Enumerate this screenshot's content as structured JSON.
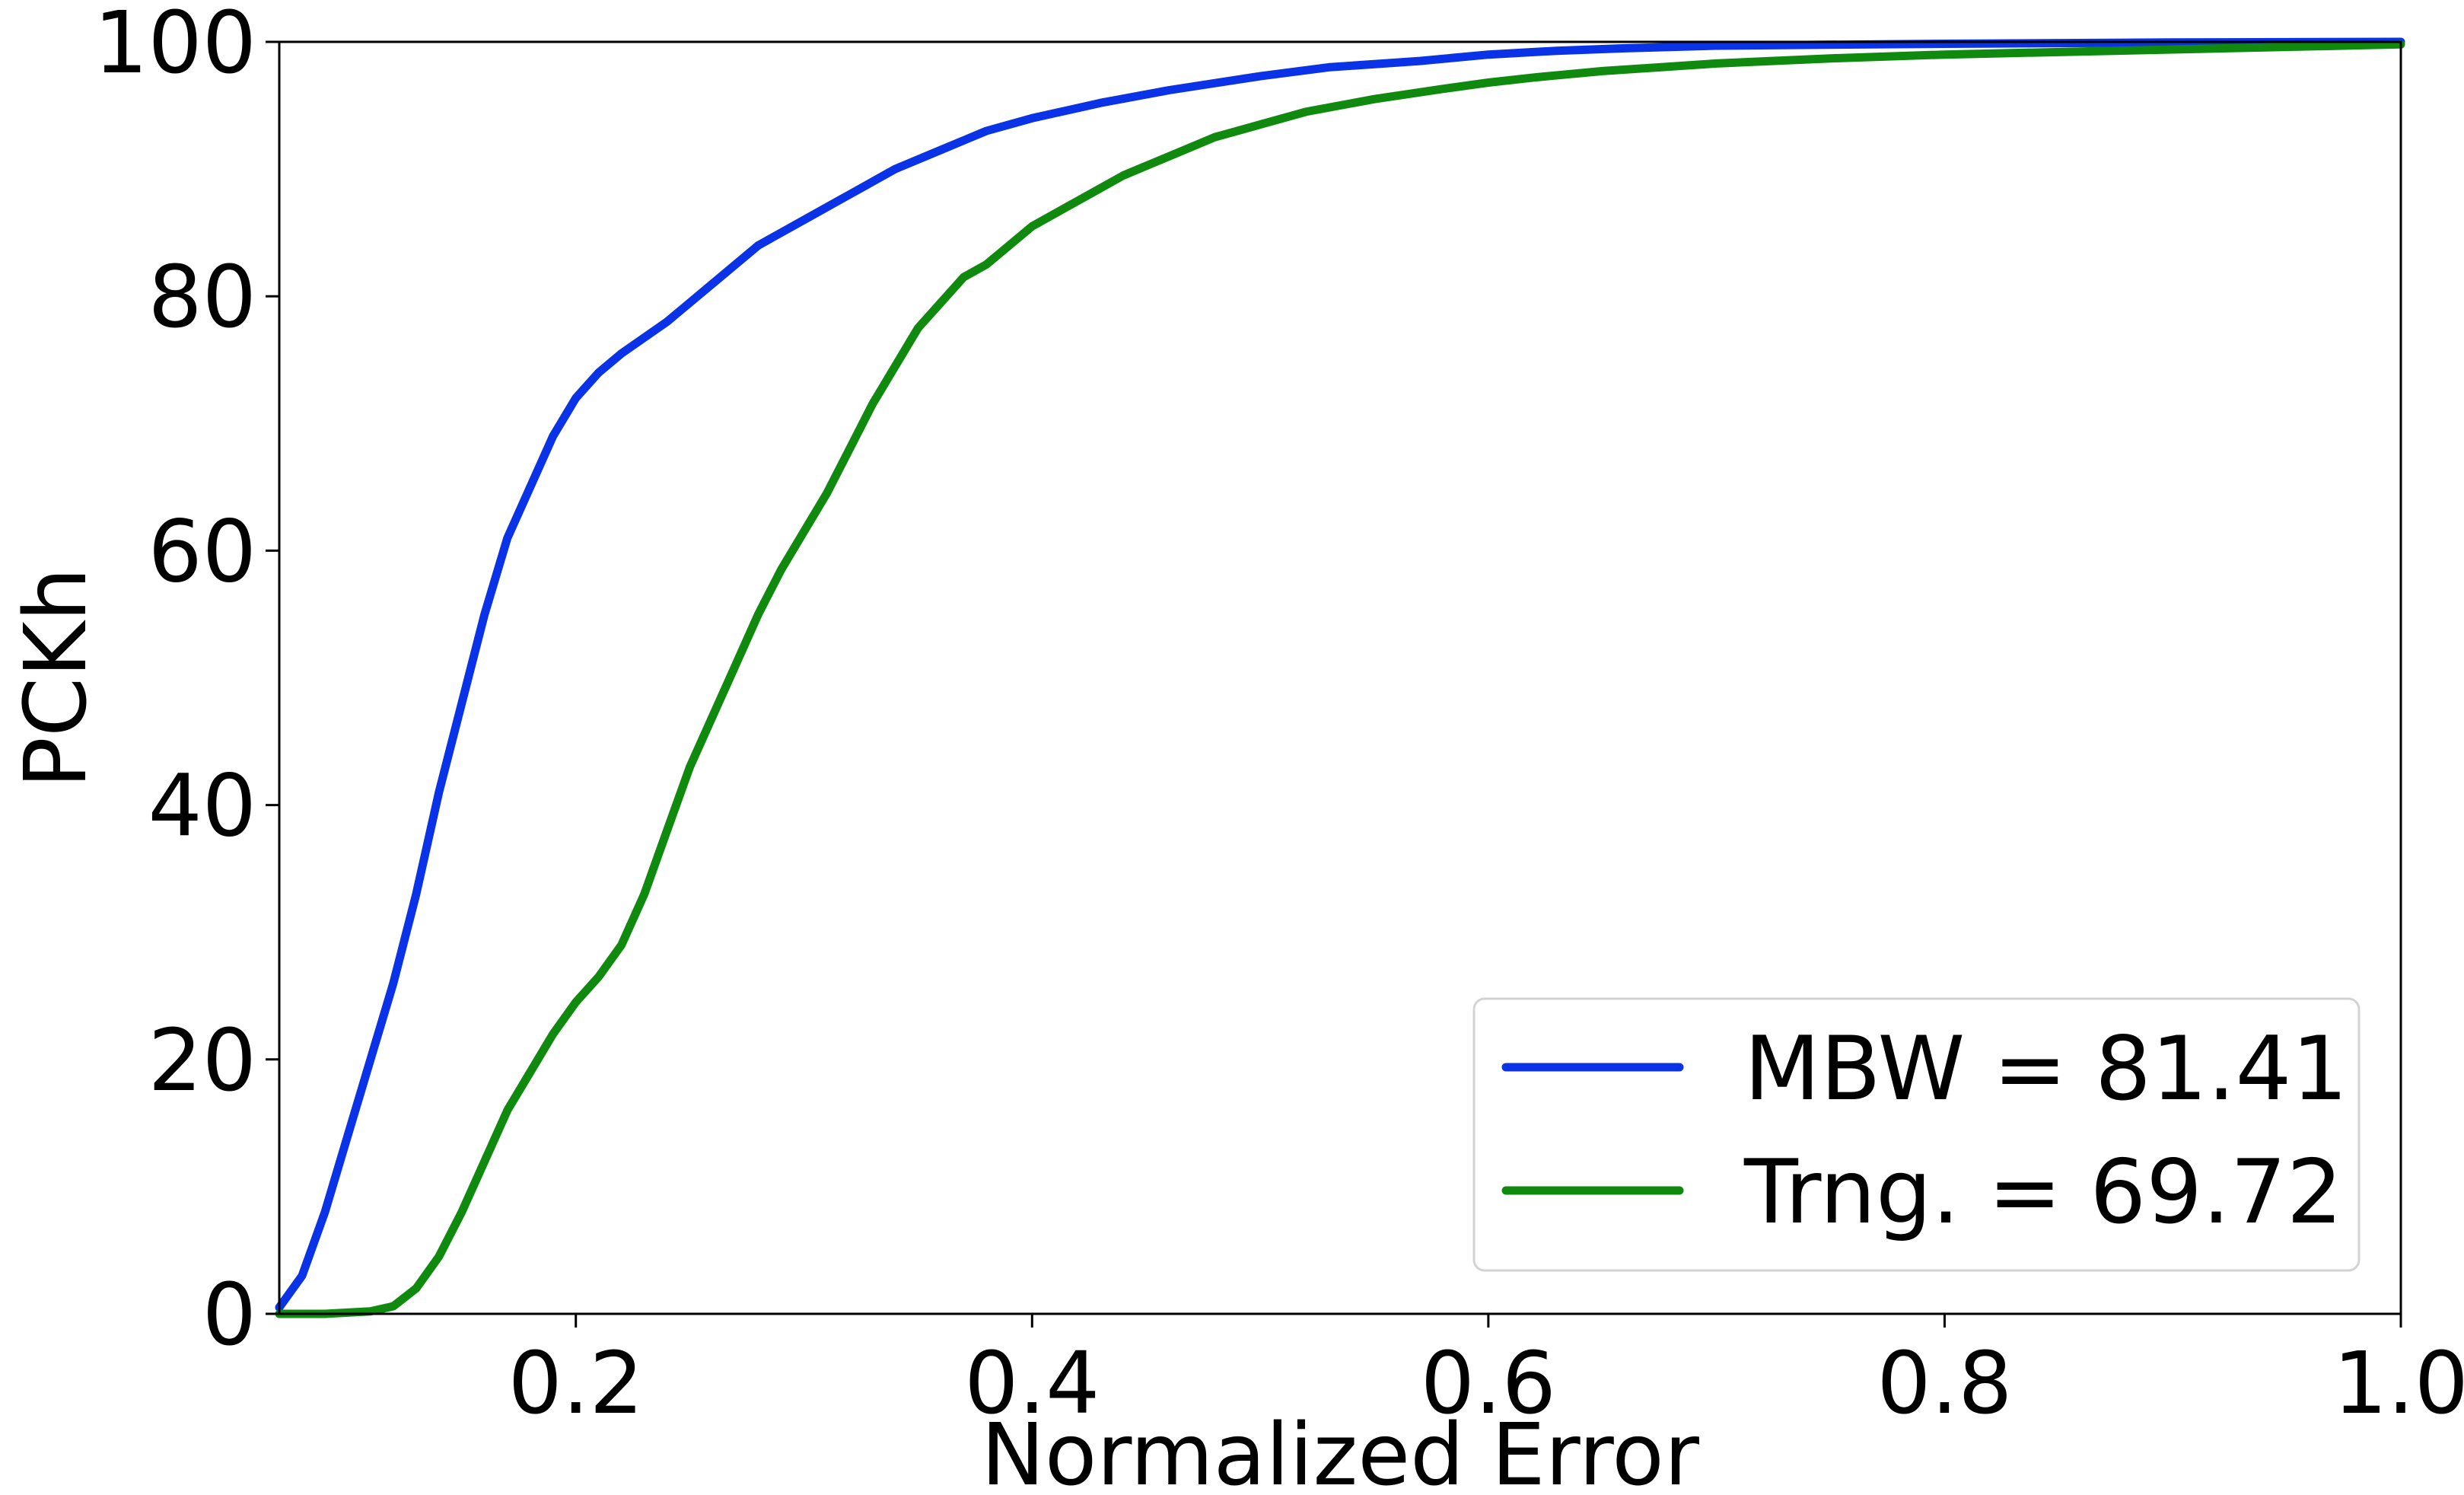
{
  "chart_data": {
    "type": "line",
    "title": "",
    "xlabel": "Normalized Error",
    "ylabel": "PCKh",
    "xlim": [
      0.07,
      1.0
    ],
    "ylim": [
      0,
      100
    ],
    "x_ticks": [
      "0.2",
      "0.4",
      "0.6",
      "0.8",
      "1.0"
    ],
    "y_ticks": [
      "0",
      "20",
      "40",
      "60",
      "80",
      "100"
    ],
    "grid": false,
    "legend_position": "lower-right",
    "series": [
      {
        "name": "MBW = 81.41",
        "color": "#0a32e6",
        "x": [
          0.07,
          0.08,
          0.09,
          0.1,
          0.11,
          0.12,
          0.13,
          0.14,
          0.15,
          0.16,
          0.17,
          0.18,
          0.19,
          0.2,
          0.21,
          0.22,
          0.24,
          0.26,
          0.28,
          0.3,
          0.32,
          0.34,
          0.36,
          0.38,
          0.4,
          0.43,
          0.46,
          0.5,
          0.53,
          0.57,
          0.6,
          0.63,
          0.66,
          0.7,
          0.8,
          0.9,
          1.0
        ],
        "y": [
          0.5,
          3,
          8,
          14,
          20,
          26,
          33,
          41,
          48,
          55,
          61,
          65,
          69,
          72,
          74,
          75.5,
          78,
          81,
          84,
          86,
          88,
          90,
          91.5,
          93,
          94,
          95.2,
          96.2,
          97.3,
          98,
          98.5,
          99,
          99.3,
          99.5,
          99.7,
          99.85,
          99.95,
          100
        ]
      },
      {
        "name": "Trng. = 69.72",
        "color": "#0f8a0f",
        "x": [
          0.07,
          0.09,
          0.11,
          0.12,
          0.13,
          0.14,
          0.15,
          0.16,
          0.17,
          0.18,
          0.19,
          0.2,
          0.21,
          0.22,
          0.23,
          0.24,
          0.25,
          0.26,
          0.27,
          0.28,
          0.29,
          0.3,
          0.31,
          0.32,
          0.33,
          0.34,
          0.35,
          0.36,
          0.37,
          0.38,
          0.39,
          0.4,
          0.42,
          0.44,
          0.46,
          0.48,
          0.5,
          0.52,
          0.55,
          0.58,
          0.6,
          0.62,
          0.65,
          0.7,
          0.75,
          0.8,
          0.9,
          1.0
        ],
        "y": [
          0,
          0,
          0.2,
          0.6,
          2,
          4.5,
          8,
          12,
          16,
          19,
          22,
          24.5,
          26.5,
          29,
          33,
          38,
          43,
          47,
          51,
          55,
          58.5,
          61.5,
          64.5,
          68,
          71.5,
          74.5,
          77.5,
          79.5,
          81.5,
          82.5,
          84,
          85.5,
          87.5,
          89.5,
          91,
          92.5,
          93.5,
          94.5,
          95.5,
          96.3,
          96.8,
          97.2,
          97.7,
          98.3,
          98.7,
          99,
          99.4,
          99.8
        ]
      }
    ]
  }
}
